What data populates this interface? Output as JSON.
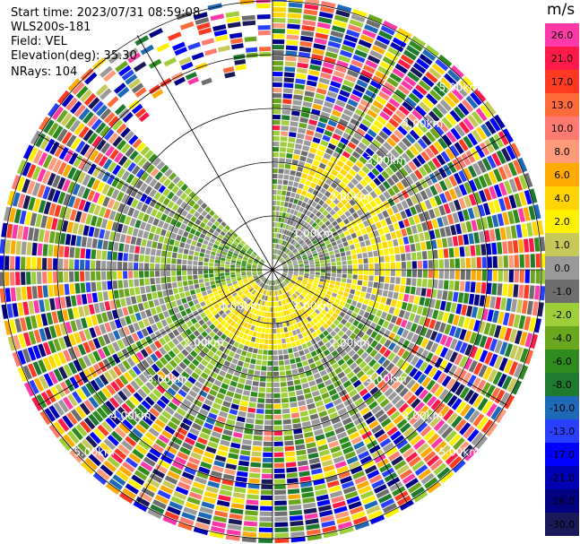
{
  "header": {
    "start_time": "Start time: 2023/07/31 08:59:08",
    "instrument": "WLS200s-181",
    "field": "Field: VEL",
    "elevation": "Elevation(deg): 35.30",
    "nrays": "NRays: 104"
  },
  "colorbar": {
    "title": "m/s",
    "ticks": [
      "26.0",
      "21.0",
      "17.0",
      "13.0",
      "10.0",
      "8.0",
      "6.0",
      "4.0",
      "2.0",
      "1.0",
      "0.0",
      "-1.0",
      "-2.0",
      "-4.0",
      "-6.0",
      "-8.0",
      "-10.0",
      "-13.0",
      "-17.0",
      "-21.0",
      "-26.0",
      "-30.0"
    ],
    "colors": [
      "#ff3aa8",
      "#ff1a4a",
      "#ff3a22",
      "#ff6a3a",
      "#ff7a70",
      "#ff9a7a",
      "#ffaa00",
      "#ffd400",
      "#fff200",
      "#c8c858",
      "#9a9a9a",
      "#6e6e6e",
      "#9ecf3a",
      "#6aa61e",
      "#2e8c1e",
      "#1e7a2e",
      "#1e6ab8",
      "#2a40ff",
      "#0000ff",
      "#0000b4",
      "#000080",
      "#1a1a5a"
    ]
  },
  "chart_data": {
    "type": "heatmap",
    "title": "",
    "projection": "polar PPI (plan position indicator)",
    "field": "VEL",
    "units": "m/s",
    "value_range": [
      -30.0,
      26.0
    ],
    "range_rings_labels": [
      "1.00km",
      "2.00km",
      "3.00km",
      "4.00km",
      "5.00km",
      "6.00km"
    ],
    "grid": true,
    "blank_sector_azimuth_deg": [
      315,
      360
    ],
    "pattern": "Near range: positive (yellow) velocities to the south/south-east and north-east, negative (green) to the west and north; far range: noisy multi-colour returns"
  }
}
